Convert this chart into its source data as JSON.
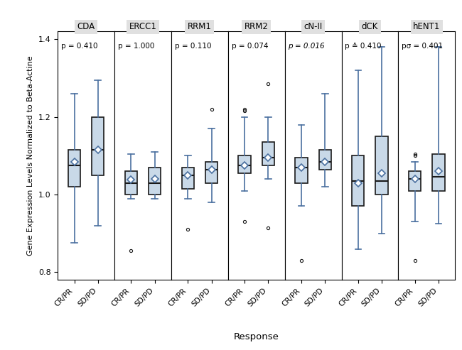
{
  "genes": [
    "CDA",
    "ERCC1",
    "RRM1",
    "RRM2",
    "cN-II",
    "dCK",
    "hENT1"
  ],
  "p_values": [
    "p = 0.410",
    "p = 1.000",
    "p = 0.110",
    "p = 0.074",
    "p = 0.016",
    "p ≙ 0.410",
    "pσ = 0.401"
  ],
  "p_italic": [
    false,
    false,
    false,
    false,
    true,
    false,
    false
  ],
  "ylabel": "Gene Expression Levels Normalized to Beta-Actine",
  "xlabel": "Response",
  "ylim": [
    0.78,
    1.42
  ],
  "yticks": [
    0.8,
    1.0,
    1.2,
    1.4
  ],
  "box_facecolor": "#c9d9e8",
  "box_edgecolor": "#1a1a1a",
  "whisker_color": "#4a70a0",
  "cap_color": "#4a70a0",
  "median_color": "#1a1a1a",
  "mean_marker_face": "#ffffff",
  "mean_marker_edge": "#4a70a0",
  "outlier_mfc": "none",
  "outlier_mec": "#1a1a1a",
  "title_bg": "#e0e0e0",
  "groups": [
    "CR/PR",
    "SD/PD"
  ],
  "boxplot_data": {
    "CDA": {
      "CR/PR": {
        "whislo": 0.875,
        "q1": 1.02,
        "med": 1.075,
        "q3": 1.115,
        "whishi": 1.26,
        "mean": 1.085,
        "fliers": []
      },
      "SD/PD": {
        "whislo": 0.92,
        "q1": 1.05,
        "med": 1.115,
        "q3": 1.2,
        "whishi": 1.295,
        "mean": 1.115,
        "fliers": []
      }
    },
    "ERCC1": {
      "CR/PR": {
        "whislo": 0.99,
        "q1": 1.0,
        "med": 1.03,
        "q3": 1.06,
        "whishi": 1.105,
        "mean": 1.038,
        "fliers": [
          0.855
        ]
      },
      "SD/PD": {
        "whislo": 0.99,
        "q1": 1.0,
        "med": 1.03,
        "q3": 1.07,
        "whishi": 1.11,
        "mean": 1.04,
        "fliers": []
      }
    },
    "RRM1": {
      "CR/PR": {
        "whislo": 0.99,
        "q1": 1.015,
        "med": 1.05,
        "q3": 1.07,
        "whishi": 1.1,
        "mean": 1.05,
        "fliers": [
          0.91
        ]
      },
      "SD/PD": {
        "whislo": 0.98,
        "q1": 1.03,
        "med": 1.065,
        "q3": 1.085,
        "whishi": 1.17,
        "mean": 1.065,
        "fliers": [
          1.22
        ]
      }
    },
    "RRM2": {
      "CR/PR": {
        "whislo": 1.01,
        "q1": 1.055,
        "med": 1.075,
        "q3": 1.1,
        "whishi": 1.2,
        "mean": 1.075,
        "fliers": [
          0.93,
          1.215,
          1.22
        ]
      },
      "SD/PD": {
        "whislo": 1.04,
        "q1": 1.075,
        "med": 1.095,
        "q3": 1.135,
        "whishi": 1.2,
        "mean": 1.095,
        "fliers": [
          1.285,
          0.915
        ]
      }
    },
    "cN-II": {
      "CR/PR": {
        "whislo": 0.97,
        "q1": 1.03,
        "med": 1.07,
        "q3": 1.095,
        "whishi": 1.18,
        "mean": 1.07,
        "fliers": [
          0.83
        ]
      },
      "SD/PD": {
        "whislo": 1.02,
        "q1": 1.065,
        "med": 1.085,
        "q3": 1.115,
        "whishi": 1.26,
        "mean": 1.085,
        "fliers": []
      }
    },
    "dCK": {
      "CR/PR": {
        "whislo": 0.86,
        "q1": 0.97,
        "med": 1.035,
        "q3": 1.1,
        "whishi": 1.32,
        "mean": 1.03,
        "fliers": []
      },
      "SD/PD": {
        "whislo": 0.9,
        "q1": 1.0,
        "med": 1.035,
        "q3": 1.15,
        "whishi": 1.38,
        "mean": 1.055,
        "fliers": []
      }
    },
    "hENT1": {
      "CR/PR": {
        "whislo": 0.93,
        "q1": 1.01,
        "med": 1.04,
        "q3": 1.06,
        "whishi": 1.085,
        "mean": 1.04,
        "fliers": [
          0.83,
          1.1,
          1.105
        ]
      },
      "SD/PD": {
        "whislo": 0.925,
        "q1": 1.01,
        "med": 1.045,
        "q3": 1.105,
        "whishi": 1.38,
        "mean": 1.06,
        "fliers": []
      }
    }
  }
}
